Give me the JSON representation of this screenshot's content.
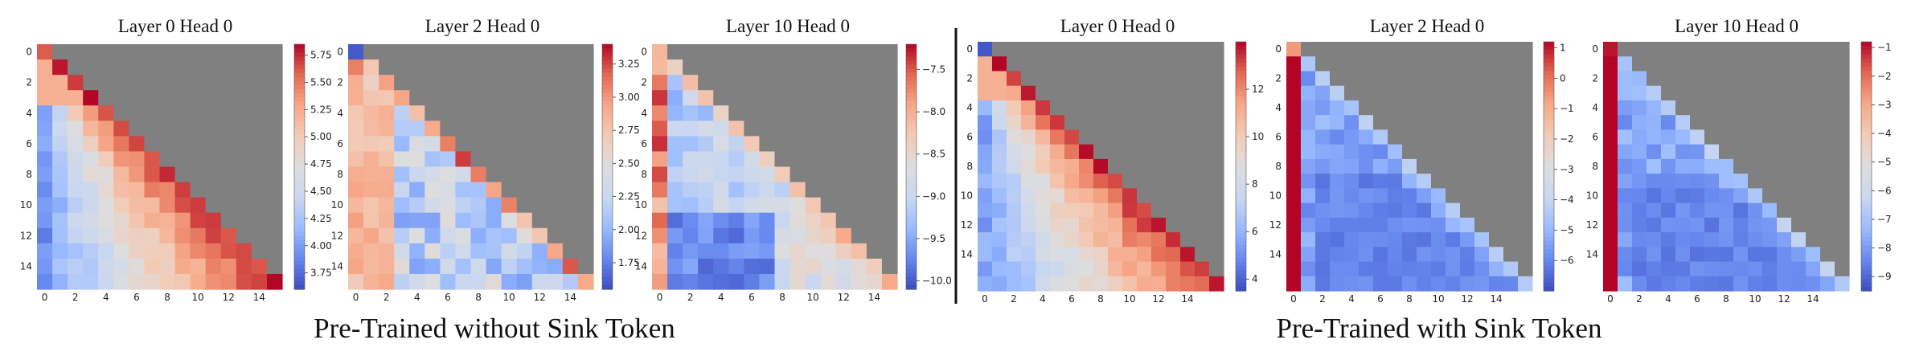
{
  "figure": {
    "group_captions": [
      "Pre-Trained without Sink Token",
      "Pre-Trained with Sink Token"
    ],
    "masked_cell_color": "#808080",
    "colormap": "coolwarm",
    "colormap_stops": [
      "#3b4cc0",
      "#6788ee",
      "#9abbff",
      "#c9d7f0",
      "#ddddde",
      "#f2cbb7",
      "#f7a889",
      "#e26952",
      "#b40426"
    ]
  },
  "chart_data": [
    {
      "type": "heatmap",
      "group": "Pre-Trained without Sink Token",
      "title": "Layer 0 Head 0",
      "size": 16,
      "mask": "upper-triangle",
      "x_ticks": [
        0,
        2,
        4,
        6,
        8,
        10,
        12,
        14
      ],
      "y_ticks": [
        0,
        2,
        4,
        6,
        8,
        10,
        12,
        14
      ],
      "colorbar": {
        "min": 3.6,
        "max": 5.85,
        "ticks": [
          "3.75",
          "4.00",
          "4.25",
          "4.50",
          "4.75",
          "5.00",
          "5.25",
          "5.50",
          "5.75"
        ]
      },
      "pattern": "diagonal-high",
      "col0_scale": 0.0
    },
    {
      "type": "heatmap",
      "group": "Pre-Trained without Sink Token",
      "title": "Layer 2 Head 0",
      "size": 16,
      "mask": "upper-triangle",
      "x_ticks": [
        0,
        2,
        4,
        6,
        8,
        10,
        12,
        14
      ],
      "y_ticks": [
        0,
        2,
        4,
        6,
        8,
        10,
        12,
        14
      ],
      "colorbar": {
        "min": 1.55,
        "max": 3.4,
        "ticks": [
          "1.75",
          "2.00",
          "2.25",
          "2.50",
          "2.75",
          "3.00",
          "3.25"
        ]
      },
      "pattern": "mixed",
      "col0_scale": 0.0
    },
    {
      "type": "heatmap",
      "group": "Pre-Trained without Sink Token",
      "title": "Layer 10 Head 0",
      "size": 16,
      "mask": "upper-triangle",
      "x_ticks": [
        0,
        2,
        4,
        6,
        8,
        10,
        12,
        14
      ],
      "y_ticks": [
        0,
        2,
        4,
        6,
        8,
        10,
        12,
        14
      ],
      "colorbar": {
        "min": -10.1,
        "max": -7.2,
        "ticks": [
          "-10.0",
          "-9.5",
          "-9.0",
          "-8.5",
          "-8.0",
          "-7.5"
        ]
      },
      "pattern": "first-column-high",
      "col0_scale": 0.85
    },
    {
      "type": "heatmap",
      "group": "Pre-Trained with Sink Token",
      "title": "Layer 0 Head 0",
      "size": 17,
      "mask": "upper-triangle",
      "x_ticks": [
        0,
        2,
        4,
        6,
        8,
        10,
        12,
        14
      ],
      "y_ticks": [
        0,
        2,
        4,
        6,
        8,
        10,
        12,
        14
      ],
      "colorbar": {
        "min": 3.5,
        "max": 14.0,
        "ticks": [
          "4",
          "6",
          "8",
          "10",
          "12"
        ]
      },
      "pattern": "diagonal-high",
      "col0_scale": 0.0
    },
    {
      "type": "heatmap",
      "group": "Pre-Trained with Sink Token",
      "title": "Layer 2 Head 0",
      "size": 17,
      "mask": "upper-triangle",
      "x_ticks": [
        0,
        2,
        4,
        6,
        8,
        10,
        12,
        14
      ],
      "y_ticks": [
        0,
        2,
        4,
        6,
        8,
        10,
        12,
        14
      ],
      "colorbar": {
        "min": -7.0,
        "max": 1.2,
        "ticks": [
          "-6",
          "-5",
          "-4",
          "-3",
          "-2",
          "-1",
          "0",
          "1"
        ]
      },
      "pattern": "sink-column",
      "col0_scale": 1.0
    },
    {
      "type": "heatmap",
      "group": "Pre-Trained with Sink Token",
      "title": "Layer 10 Head 0",
      "size": 17,
      "mask": "upper-triangle",
      "x_ticks": [
        0,
        2,
        4,
        6,
        8,
        10,
        12,
        14
      ],
      "y_ticks": [
        0,
        2,
        4,
        6,
        8,
        10,
        12,
        14
      ],
      "colorbar": {
        "min": -9.5,
        "max": -0.8,
        "ticks": [
          "-9",
          "-8",
          "-7",
          "-6",
          "-5",
          "-4",
          "-3",
          "-2",
          "-1"
        ]
      },
      "pattern": "sink-column",
      "col0_scale": 1.0
    }
  ]
}
